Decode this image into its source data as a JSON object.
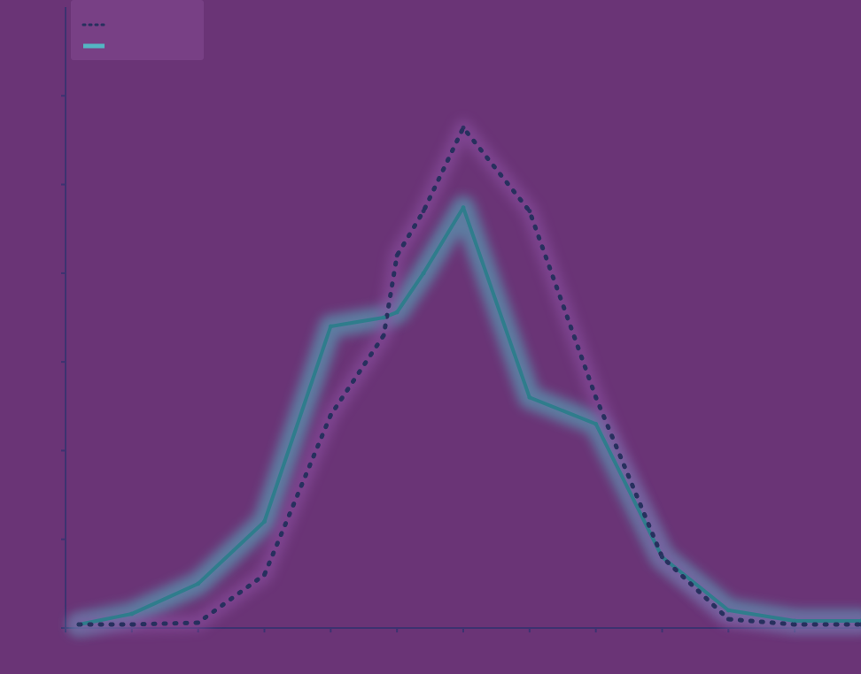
{
  "chart_data": {
    "type": "line",
    "title": "",
    "xlabel": "",
    "ylabel": "",
    "xlim": [
      -3.0,
      3.0
    ],
    "ylim": [
      0.0,
      0.35
    ],
    "x": [
      -2.9,
      -2.5,
      -2.0,
      -1.5,
      -1.0,
      -0.6,
      -0.5,
      -0.3,
      0.0,
      0.5,
      1.0,
      1.5,
      2.0,
      2.5,
      3.0
    ],
    "x_ticks": [
      -3.0,
      -2.5,
      -2.0,
      -1.5,
      -1.0,
      -0.5,
      0.0,
      0.5,
      1.0,
      1.5,
      2.0,
      2.5
    ],
    "y_ticks": [
      0.0,
      0.05,
      0.1,
      0.15,
      0.2,
      0.25,
      0.3
    ],
    "x_tick_labels": [
      "",
      "",
      "",
      "",
      "",
      "",
      "",
      "",
      "",
      "",
      "",
      ""
    ],
    "y_tick_labels": [
      "",
      "",
      "",
      "",
      "",
      "",
      ""
    ],
    "series": [
      {
        "style": "solid",
        "color": "#2f7d8c",
        "band_color": "#53b7c4",
        "values": [
          0.002,
          0.008,
          0.025,
          0.06,
          0.17,
          0.175,
          0.178,
          0.2,
          0.237,
          0.13,
          0.115,
          0.04,
          0.01,
          0.004,
          0.004
        ]
      },
      {
        "style": "dotted",
        "color": "#27305e",
        "band_color": "#8a4fa0",
        "values": [
          0.002,
          0.002,
          0.003,
          0.03,
          0.12,
          0.165,
          0.21,
          0.235,
          0.282,
          0.235,
          0.13,
          0.04,
          0.005,
          0.002,
          0.002
        ]
      }
    ],
    "legend": {
      "placement": "top-left",
      "entries": [
        "",
        ""
      ]
    },
    "grid": false
  }
}
